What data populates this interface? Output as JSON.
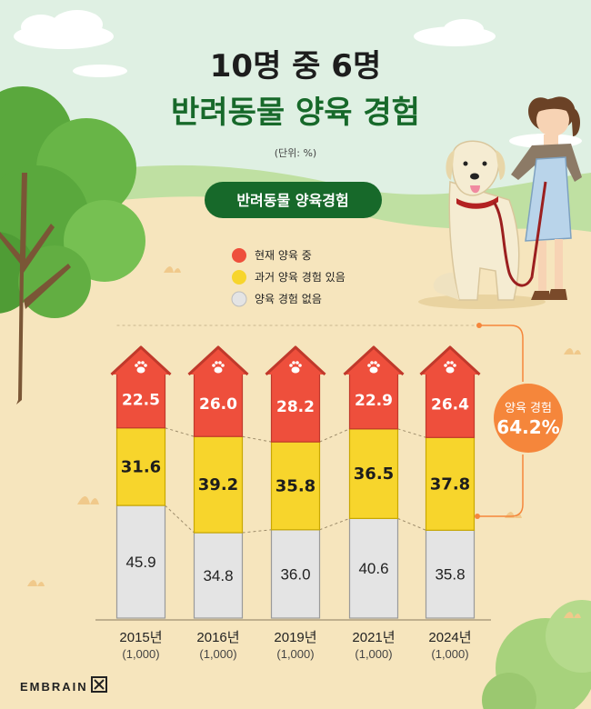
{
  "header": {
    "title_line1": "10명 중 6명",
    "title_line2": "반려동물 양육 경험",
    "unit": "(단위: %)"
  },
  "subtitle": "반려동물 양육경험",
  "legend": [
    {
      "label": "현재 양육 중",
      "color": "#ee4f3c"
    },
    {
      "label": "과거 양육 경험 있음",
      "color": "#f7d52c"
    },
    {
      "label": "양육 경험 없음",
      "color": "#e4e4e4"
    }
  ],
  "badge": {
    "line1": "양육 경험",
    "line2": "64.2%",
    "color": "#f5863b"
  },
  "brand": "EMBRAIN",
  "chart_data": {
    "type": "bar",
    "stacked": true,
    "categories": [
      "2015년",
      "2016년",
      "2019년",
      "2021년",
      "2024년"
    ],
    "sample_sizes": [
      "(1,000)",
      "(1,000)",
      "(1,000)",
      "(1,000)",
      "(1,000)"
    ],
    "series": [
      {
        "name": "현재 양육 중",
        "values": [
          22.5,
          26.0,
          28.2,
          22.9,
          26.4
        ],
        "labels": [
          "22.5",
          "26.0",
          "28.2",
          "22.9",
          "26.4"
        ],
        "color": "#ee4f3c"
      },
      {
        "name": "과거 양육 경험 있음",
        "values": [
          31.6,
          39.2,
          35.8,
          36.5,
          37.8
        ],
        "labels": [
          "31.6",
          "39.2",
          "35.8",
          "36.5",
          "37.8"
        ],
        "color": "#f7d52c"
      },
      {
        "name": "양육 경험 없음",
        "values": [
          45.9,
          34.8,
          36.0,
          40.6,
          35.8
        ],
        "labels": [
          "45.9",
          "34.8",
          "36.0",
          "40.6",
          "35.8"
        ],
        "color": "#e4e4e4"
      }
    ],
    "ylim": [
      0,
      100
    ],
    "grid": false,
    "legend_position": "top-left"
  }
}
